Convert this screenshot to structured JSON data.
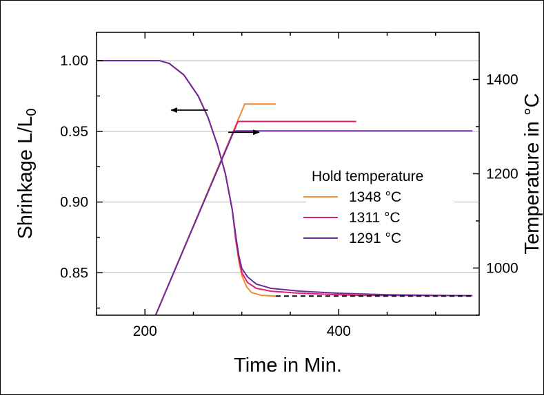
{
  "chart_data": {
    "type": "line",
    "xlabel": "Time in Min.",
    "ylabel_left": {
      "main": "Shrinkage L/L",
      "subscript": "0"
    },
    "ylabel_right": "Temperature in °C",
    "xlim": [
      150,
      545
    ],
    "ylim_left": [
      0.82,
      1.02
    ],
    "ylim_right": [
      900,
      1500
    ],
    "x_ticks": [
      200,
      400
    ],
    "y_ticks_left": [
      0.85,
      0.9,
      0.95,
      1.0
    ],
    "y_tick_labels_left": [
      "0.85",
      "0.90",
      "0.95",
      "1.00"
    ],
    "y_ticks_right": [
      1000,
      1200,
      1400
    ],
    "grid": "horizontal, at left-axis major ticks",
    "legend": {
      "title": "Hold temperature",
      "placement": "center-right",
      "entries": [
        {
          "label": "1348 °C",
          "color": "#f28a30"
        },
        {
          "label": "1311 °C",
          "color": "#e0206a"
        },
        {
          "label": "1291 °C",
          "color": "#6a2c9c"
        }
      ]
    },
    "temperature_series": [
      {
        "name": "1348 °C",
        "axis": "right",
        "color": "#f28a30",
        "points": [
          [
            211,
            900
          ],
          [
            303,
            1348
          ],
          [
            335,
            1348
          ]
        ]
      },
      {
        "name": "1311 °C",
        "axis": "right",
        "color": "#e0206a",
        "points": [
          [
            211,
            900
          ],
          [
            296,
            1311
          ],
          [
            418,
            1311
          ]
        ]
      },
      {
        "name": "1291 °C",
        "axis": "right",
        "color": "#6a2c9c",
        "points": [
          [
            211,
            900
          ],
          [
            292,
            1291
          ],
          [
            538,
            1291
          ]
        ]
      }
    ],
    "shrinkage_series": [
      {
        "name": "1348 °C",
        "axis": "left",
        "color": "#f28a30",
        "points": [
          [
            150,
            1.0
          ],
          [
            215,
            1.0
          ],
          [
            225,
            0.998
          ],
          [
            240,
            0.99
          ],
          [
            255,
            0.975
          ],
          [
            265,
            0.96
          ],
          [
            275,
            0.94
          ],
          [
            283,
            0.92
          ],
          [
            290,
            0.895
          ],
          [
            294,
            0.872
          ],
          [
            297,
            0.858
          ],
          [
            300,
            0.848
          ],
          [
            305,
            0.84
          ],
          [
            310,
            0.836
          ],
          [
            320,
            0.834
          ],
          [
            335,
            0.8335
          ]
        ]
      },
      {
        "name": "1311 °C",
        "axis": "left",
        "color": "#e0206a",
        "points": [
          [
            150,
            1.0
          ],
          [
            215,
            1.0
          ],
          [
            225,
            0.998
          ],
          [
            240,
            0.99
          ],
          [
            255,
            0.975
          ],
          [
            265,
            0.96
          ],
          [
            275,
            0.94
          ],
          [
            283,
            0.92
          ],
          [
            290,
            0.895
          ],
          [
            294,
            0.872
          ],
          [
            297,
            0.86
          ],
          [
            300,
            0.85
          ],
          [
            306,
            0.843
          ],
          [
            315,
            0.839
          ],
          [
            330,
            0.837
          ],
          [
            360,
            0.8355
          ],
          [
            400,
            0.8345
          ],
          [
            418,
            0.834
          ],
          [
            538,
            0.8338
          ]
        ]
      },
      {
        "name": "1291 °C",
        "axis": "left",
        "color": "#6a2c9c",
        "points": [
          [
            150,
            1.0
          ],
          [
            215,
            1.0
          ],
          [
            225,
            0.998
          ],
          [
            240,
            0.99
          ],
          [
            255,
            0.975
          ],
          [
            265,
            0.96
          ],
          [
            275,
            0.94
          ],
          [
            283,
            0.92
          ],
          [
            290,
            0.895
          ],
          [
            294,
            0.875
          ],
          [
            297,
            0.862
          ],
          [
            300,
            0.853
          ],
          [
            306,
            0.847
          ],
          [
            315,
            0.842
          ],
          [
            330,
            0.839
          ],
          [
            360,
            0.837
          ],
          [
            400,
            0.8355
          ],
          [
            450,
            0.8345
          ],
          [
            500,
            0.834
          ],
          [
            538,
            0.8338
          ]
        ]
      }
    ],
    "reference_line": {
      "style": "dashed",
      "color": "#000000",
      "axis": "left",
      "points": [
        [
          335,
          0.8335
        ],
        [
          538,
          0.8335
        ]
      ]
    },
    "annotations": [
      {
        "type": "arrow",
        "direction": "left",
        "meaning": "curve belongs to left axis",
        "at": [
          265,
          0.965
        ],
        "length_x": 38
      },
      {
        "type": "arrow",
        "direction": "right",
        "meaning": "curve belongs to right axis",
        "at": [
          286,
          1288
        ],
        "length_x": 32
      }
    ]
  }
}
